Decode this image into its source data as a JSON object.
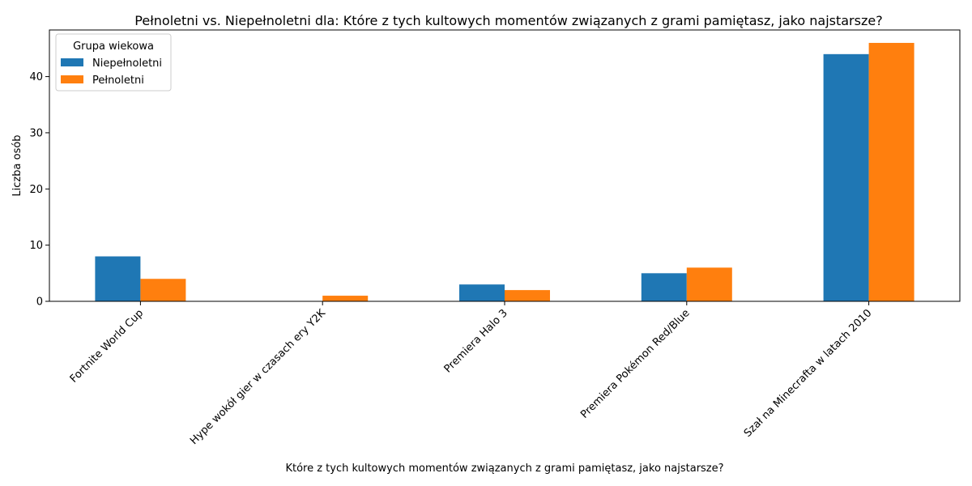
{
  "chart_data": {
    "type": "bar",
    "title": "Pełnoletni vs. Niepełnoletni dla: Które z tych kultowych momentów związanych z grami pamiętasz, jako najstarsze?",
    "xlabel": "Które z tych kultowych momentów związanych z grami pamiętasz, jako najstarsze?",
    "ylabel": "Liczba osób",
    "categories": [
      "Fortnite World Cup",
      "Hype wokół gier w czasach ery Y2K",
      "Premiera Halo 3",
      "Premiera Pokémon Red/Blue",
      "Szał na Minecrafta w latach 2010"
    ],
    "series": [
      {
        "name": "Niepełnoletni",
        "color": "#1f77b4",
        "values": [
          8,
          0,
          3,
          5,
          44
        ]
      },
      {
        "name": "Pełnoletni",
        "color": "#ff7f0e",
        "values": [
          4,
          1,
          2,
          6,
          46
        ]
      }
    ],
    "ylim": [
      0,
      48.3
    ],
    "yticks": [
      0,
      10,
      20,
      30,
      40
    ],
    "legend": {
      "title": "Grupa wiekowa",
      "placement": "top-left"
    },
    "grid": false
  }
}
